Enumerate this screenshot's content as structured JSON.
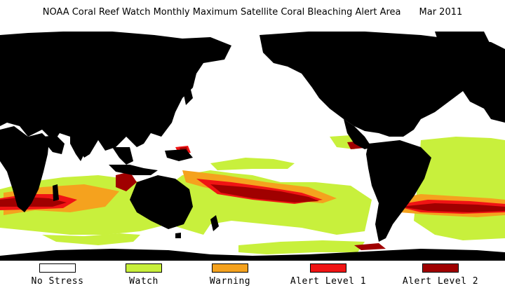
{
  "header": {
    "title": "NOAA Coral Reef Watch Monthly Maximum Satellite Coral Bleaching Alert Area",
    "date": "Mar 2011"
  },
  "colors": {
    "no_stress": "#ffffff",
    "watch": "#c8f03c",
    "warning": "#f5a21e",
    "alert_level_1": "#f01414",
    "alert_level_2": "#a00000",
    "land": "#000000"
  },
  "legend": {
    "items": [
      {
        "label": "No Stress",
        "color": "#ffffff"
      },
      {
        "label": "Watch",
        "color": "#c8f03c"
      },
      {
        "label": "Warning",
        "color": "#f5a21e"
      },
      {
        "label": "Alert Level 1",
        "color": "#f01414"
      },
      {
        "label": "Alert Level 2",
        "color": "#a00000"
      }
    ]
  }
}
